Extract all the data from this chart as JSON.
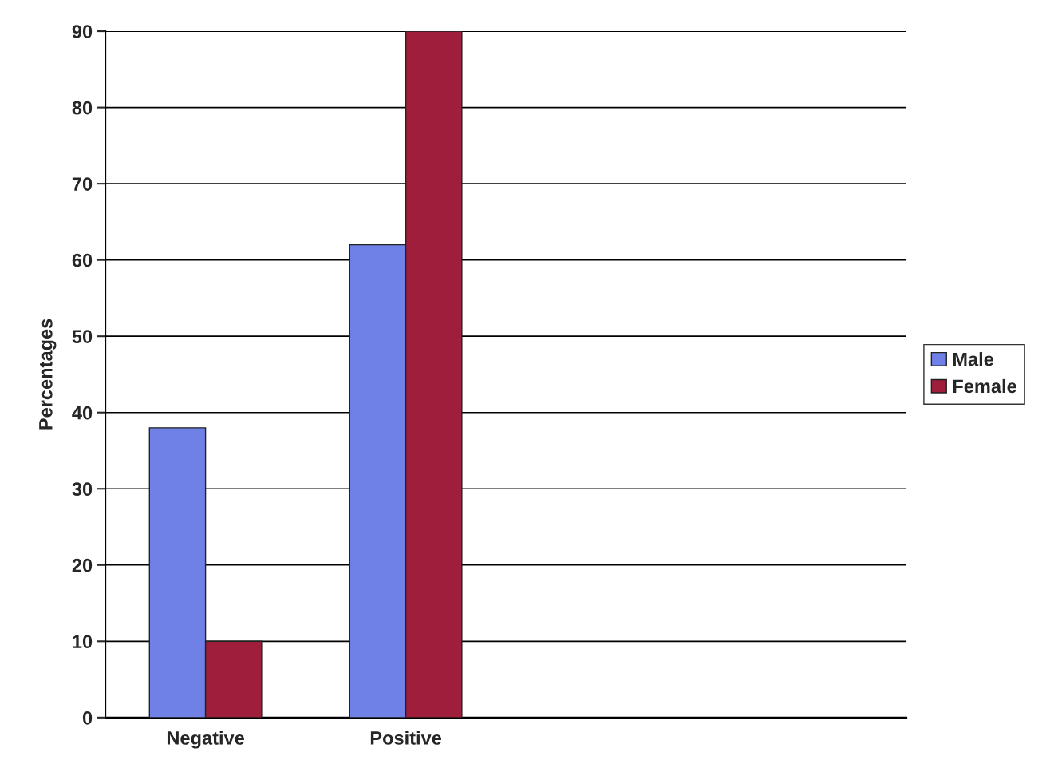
{
  "chart_data": {
    "type": "bar",
    "ylabel": "Percentages",
    "categories": [
      "Negative",
      "Positive",
      null,
      null
    ],
    "series": [
      {
        "name": "Male",
        "color": "#6f80e6",
        "values": [
          38,
          62,
          null,
          null
        ]
      },
      {
        "name": "Female",
        "color": "#9e1e3c",
        "values": [
          10,
          90,
          null,
          null
        ]
      }
    ],
    "ylim": [
      0,
      90
    ],
    "yticks": [
      0,
      10,
      20,
      30,
      40,
      50,
      60,
      70,
      80,
      90
    ],
    "grid": "y",
    "legend": "right"
  }
}
